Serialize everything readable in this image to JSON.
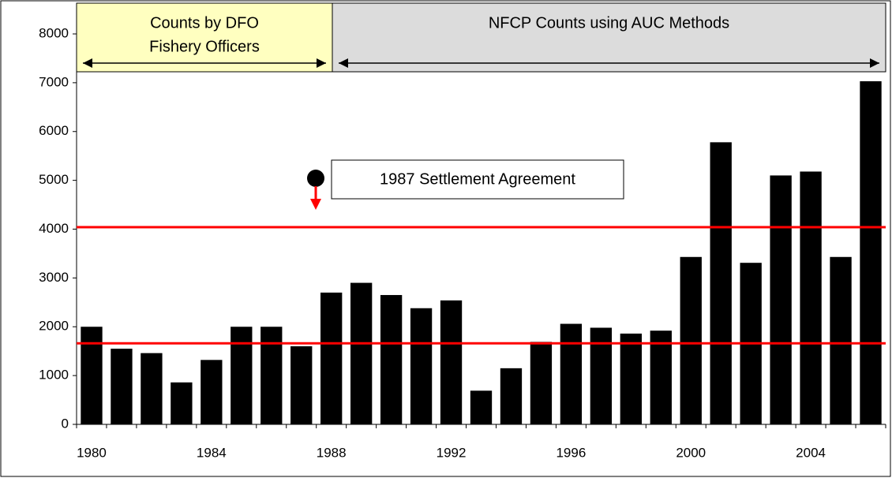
{
  "chart_data": {
    "type": "bar",
    "categories": [
      "1980",
      null,
      null,
      null,
      "1984",
      null,
      null,
      null,
      "1988",
      null,
      null,
      null,
      "1992",
      null,
      null,
      null,
      "1996",
      null,
      null,
      null,
      "2000",
      null,
      null,
      null,
      "2004",
      null,
      null
    ],
    "values": [
      2000,
      1550,
      1460,
      860,
      1320,
      2000,
      2000,
      1600,
      2700,
      2900,
      2650,
      2380,
      2540,
      690,
      1150,
      1690,
      2060,
      1980,
      1860,
      1920,
      3430,
      5780,
      3310,
      5100,
      5180,
      3430,
      7030
    ],
    "color": "#000000",
    "ylim": [
      0,
      8000
    ],
    "yticks": [
      0,
      1000,
      2000,
      3000,
      4000,
      5000,
      6000,
      7000,
      8000
    ],
    "reference_lines": [
      4040,
      1660
    ],
    "reference_color": "#ff0000",
    "periods": [
      {
        "lines": [
          "Counts by DFO",
          "Fishery Officers"
        ],
        "color": "#ffffc0"
      },
      {
        "lines": [
          "NFCP Counts using AUC Methods"
        ],
        "color": "#dcdcdc"
      }
    ],
    "annotation": "1987 Settlement Agreement"
  }
}
